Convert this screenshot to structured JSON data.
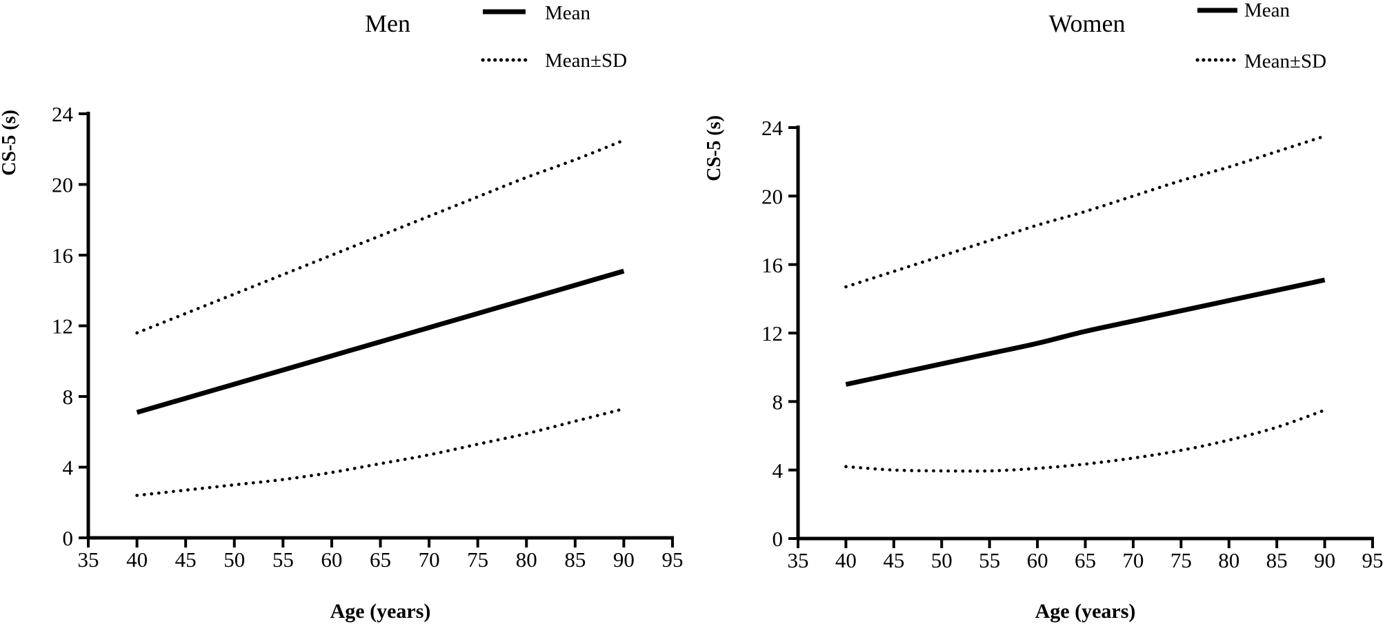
{
  "page": {
    "background": "#ffffff",
    "ink": "#000000"
  },
  "chart_data": [
    {
      "type": "line",
      "title": "Men",
      "xlabel": "Age (years)",
      "ylabel": "CS-5 (s)",
      "xlim": [
        35,
        95
      ],
      "ylim": [
        0,
        24
      ],
      "xticks": [
        35,
        40,
        45,
        50,
        55,
        60,
        65,
        70,
        75,
        80,
        85,
        90,
        95
      ],
      "yticks": [
        0,
        4,
        8,
        12,
        16,
        20,
        24
      ],
      "grid": false,
      "legend_position": "top-right",
      "legend": [
        {
          "label": "Mean",
          "style": "solid"
        },
        {
          "label": "Mean±SD",
          "style": "dotted"
        }
      ],
      "x": [
        40,
        45,
        50,
        55,
        60,
        65,
        70,
        75,
        80,
        85,
        90
      ],
      "series": [
        {
          "name": "Mean",
          "style": "solid",
          "values": [
            7.1,
            7.9,
            8.7,
            9.5,
            10.3,
            11.1,
            11.9,
            12.7,
            13.5,
            14.3,
            15.1
          ]
        },
        {
          "name": "Mean+SD",
          "style": "dotted",
          "values": [
            11.6,
            12.7,
            13.8,
            14.9,
            16.0,
            17.1,
            18.2,
            19.3,
            20.4,
            21.4,
            22.5
          ]
        },
        {
          "name": "Mean-SD",
          "style": "dotted",
          "values": [
            2.4,
            2.7,
            3.0,
            3.3,
            3.7,
            4.2,
            4.7,
            5.3,
            5.9,
            6.6,
            7.3
          ]
        }
      ]
    },
    {
      "type": "line",
      "title": "Women",
      "xlabel": "Age (years)",
      "ylabel": "CS-5 (s)",
      "xlim": [
        35,
        95
      ],
      "ylim": [
        0,
        24
      ],
      "xticks": [
        35,
        40,
        45,
        50,
        55,
        60,
        65,
        70,
        75,
        80,
        85,
        90,
        95
      ],
      "yticks": [
        0,
        4,
        8,
        12,
        16,
        20,
        24
      ],
      "grid": false,
      "legend_position": "top-right",
      "legend": [
        {
          "label": "Mean",
          "style": "solid"
        },
        {
          "label": "Mean±SD",
          "style": "dotted"
        }
      ],
      "x": [
        40,
        45,
        50,
        55,
        60,
        65,
        70,
        75,
        80,
        85,
        90
      ],
      "series": [
        {
          "name": "Mean",
          "style": "solid",
          "values": [
            9.0,
            9.6,
            10.2,
            10.8,
            11.4,
            12.1,
            12.7,
            13.3,
            13.9,
            14.5,
            15.1
          ]
        },
        {
          "name": "Mean+SD",
          "style": "dotted",
          "values": [
            14.7,
            15.6,
            16.5,
            17.4,
            18.3,
            19.1,
            20.0,
            20.9,
            21.7,
            22.6,
            23.5
          ]
        },
        {
          "name": "Mean-SD",
          "style": "dotted",
          "values": [
            4.2,
            4.0,
            3.95,
            3.95,
            4.1,
            4.35,
            4.7,
            5.15,
            5.75,
            6.5,
            7.5
          ]
        }
      ]
    }
  ]
}
